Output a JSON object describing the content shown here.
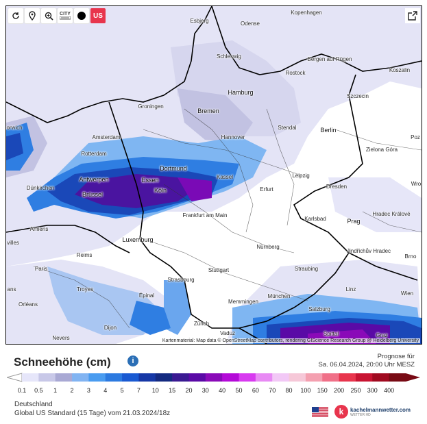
{
  "toolbar": {
    "city_label_top": "CITY",
    "us_label": "US",
    "tools": [
      "refresh-icon",
      "location-pin-icon",
      "zoom-icon",
      "city-toggle-icon",
      "dot-icon",
      "us-toggle"
    ]
  },
  "map": {
    "attribution": "Kartenmaterial: Map data © OpenStreetMap contributors, rendering GIScience Research Group @ Heidelberg University",
    "cities": [
      {
        "name": "Esbjerg",
        "big": false
      },
      {
        "name": "Odense",
        "big": false
      },
      {
        "name": "Kopenhagen",
        "big": false
      },
      {
        "name": "Schleswig",
        "big": false
      },
      {
        "name": "Bergen auf Rügen",
        "big": false
      },
      {
        "name": "Rostock",
        "big": false
      },
      {
        "name": "Koszalin",
        "big": false
      },
      {
        "name": "Hamburg",
        "big": true
      },
      {
        "name": "Szczecin",
        "big": false
      },
      {
        "name": "Groningen",
        "big": false
      },
      {
        "name": "Bremen",
        "big": true
      },
      {
        "name": "orwich",
        "big": false
      },
      {
        "name": "Amsterdam",
        "big": false
      },
      {
        "name": "Hannover",
        "big": false
      },
      {
        "name": "Stendal",
        "big": false
      },
      {
        "name": "Berlin",
        "big": true
      },
      {
        "name": "Rotterdam",
        "big": false
      },
      {
        "name": "Zielona Góra",
        "big": false
      },
      {
        "name": "Poz",
        "big": false
      },
      {
        "name": "Dortmund",
        "big": true
      },
      {
        "name": "Antwerpen",
        "big": true
      },
      {
        "name": "Essen",
        "big": true
      },
      {
        "name": "Kassel",
        "big": false
      },
      {
        "name": "Leipzig",
        "big": false
      },
      {
        "name": "Dünkirchen",
        "big": false
      },
      {
        "name": "Erfurt",
        "big": false
      },
      {
        "name": "Dresden",
        "big": false
      },
      {
        "name": "Brüssel",
        "big": true
      },
      {
        "name": "Köln",
        "big": true
      },
      {
        "name": "Wro",
        "big": false
      },
      {
        "name": "Frankfurt am Main",
        "big": false
      },
      {
        "name": "Amiens",
        "big": false
      },
      {
        "name": "Karlsbad",
        "big": false
      },
      {
        "name": "Prag",
        "big": true
      },
      {
        "name": "Hradec Králové",
        "big": false
      },
      {
        "name": "Luxemburg",
        "big": true
      },
      {
        "name": "Nürnberg",
        "big": false
      },
      {
        "name": "Jindřichův Hradec",
        "big": false
      },
      {
        "name": "Reims",
        "big": false
      },
      {
        "name": "Brno",
        "big": false
      },
      {
        "name": "Paris",
        "big": false
      },
      {
        "name": "Stuttgart",
        "big": false
      },
      {
        "name": "Straubing",
        "big": false
      },
      {
        "name": "Troyes",
        "big": false
      },
      {
        "name": "Strasbourg",
        "big": false
      },
      {
        "name": "Linz",
        "big": false
      },
      {
        "name": "Épinal",
        "big": false
      },
      {
        "name": "München",
        "big": false
      },
      {
        "name": "Wien",
        "big": false
      },
      {
        "name": "Memmingen",
        "big": false
      },
      {
        "name": "Orléans",
        "big": false
      },
      {
        "name": "Salzburg",
        "big": false
      },
      {
        "name": "Zürich",
        "big": false
      },
      {
        "name": "Dijon",
        "big": false
      },
      {
        "name": "Vaduz",
        "big": false
      },
      {
        "name": "Spittal",
        "big": false
      },
      {
        "name": "Graz",
        "big": false
      },
      {
        "name": "Nevers",
        "big": false
      },
      {
        "name": "villes",
        "big": false
      },
      {
        "name": "ans",
        "big": false
      }
    ]
  },
  "legend_title": "Schneehöhe (cm)",
  "forecast": {
    "line1": "Prognose für",
    "line2": "Sa. 06.04.2024, 20:00 Uhr MESZ"
  },
  "legend": {
    "labels": [
      "0.1",
      "0.5",
      "1",
      "2",
      "3",
      "4",
      "5",
      "7",
      "10",
      "15",
      "20",
      "30",
      "40",
      "50",
      "60",
      "70",
      "80",
      "100",
      "150",
      "200",
      "250",
      "300",
      "400"
    ],
    "colors": [
      "#e6e6fa",
      "#c8c8e8",
      "#a9a9d4",
      "#82b4f2",
      "#4a9cf0",
      "#2c7ae0",
      "#1a5ad2",
      "#1638a6",
      "#142a80",
      "#3a1a92",
      "#5a0aa6",
      "#8a0ab8",
      "#b40ad8",
      "#d83af0",
      "#e88af4",
      "#f2c8f6",
      "#f6c8d8",
      "#f4a0b0",
      "#f07088",
      "#e8354d",
      "#c81432",
      "#a00a20",
      "#780a14"
    ]
  },
  "footer": {
    "region": "Deutschland",
    "model": "Global US Standard (15 Tage) vom 21.03.2024/18z"
  },
  "logo": {
    "letter": "k",
    "name": "kachelmannwetter.com",
    "sub": "WETTER HD"
  }
}
